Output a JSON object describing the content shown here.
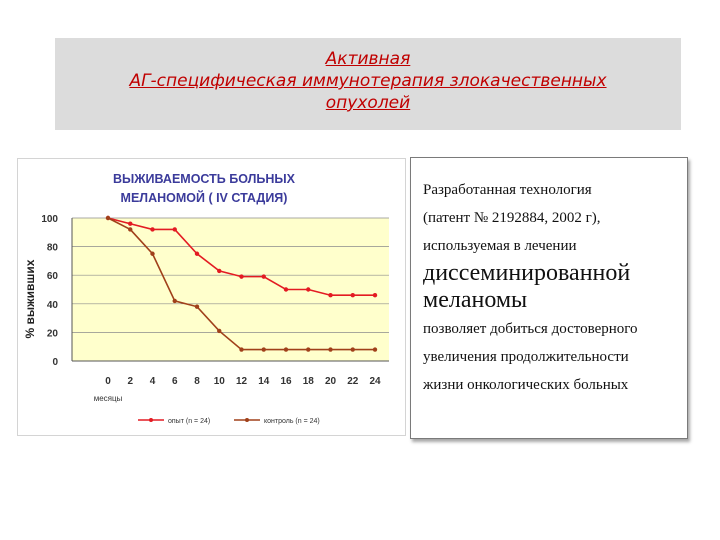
{
  "slide": {
    "title_lines": [
      "Активная",
      "АГ-специфическая иммунотерапия злокачественных",
      "опухолей"
    ]
  },
  "chart_data": {
    "type": "line",
    "title_lines": [
      "ВЫЖИВАЕМОСТЬ БОЛЬНЫХ",
      "МЕЛАНОМОЙ  ( IV СТАДИЯ)"
    ],
    "xlabel": "месяцы",
    "ylabel": "% выживших",
    "x": [
      0,
      2,
      4,
      6,
      8,
      10,
      12,
      14,
      16,
      18,
      20,
      22,
      24
    ],
    "xlim": [
      0,
      24
    ],
    "ylim": [
      0,
      100
    ],
    "yticks": [
      0,
      20,
      40,
      60,
      80,
      100
    ],
    "grid": true,
    "legend_position": "bottom",
    "series": [
      {
        "name": "опыт (n = 24)",
        "color": "#e31b23",
        "values": [
          100,
          96,
          92,
          92,
          75,
          63,
          59,
          59,
          50,
          50,
          46,
          46,
          46
        ]
      },
      {
        "name": "контроль (n = 24)",
        "color": "#a0401a",
        "values": [
          100,
          92,
          75,
          42,
          38,
          21,
          8,
          8,
          8,
          8,
          8,
          8,
          8
        ]
      }
    ]
  },
  "text_panel": {
    "lines": [
      "Разработанная технология",
      "(патент № 2192884, 2002 г),",
      "используемая в лечении",
      "диссеминированной",
      "меланомы",
      "позволяет добиться достоверного",
      "увеличения продолжительности",
      "жизни онкологических больных"
    ]
  }
}
